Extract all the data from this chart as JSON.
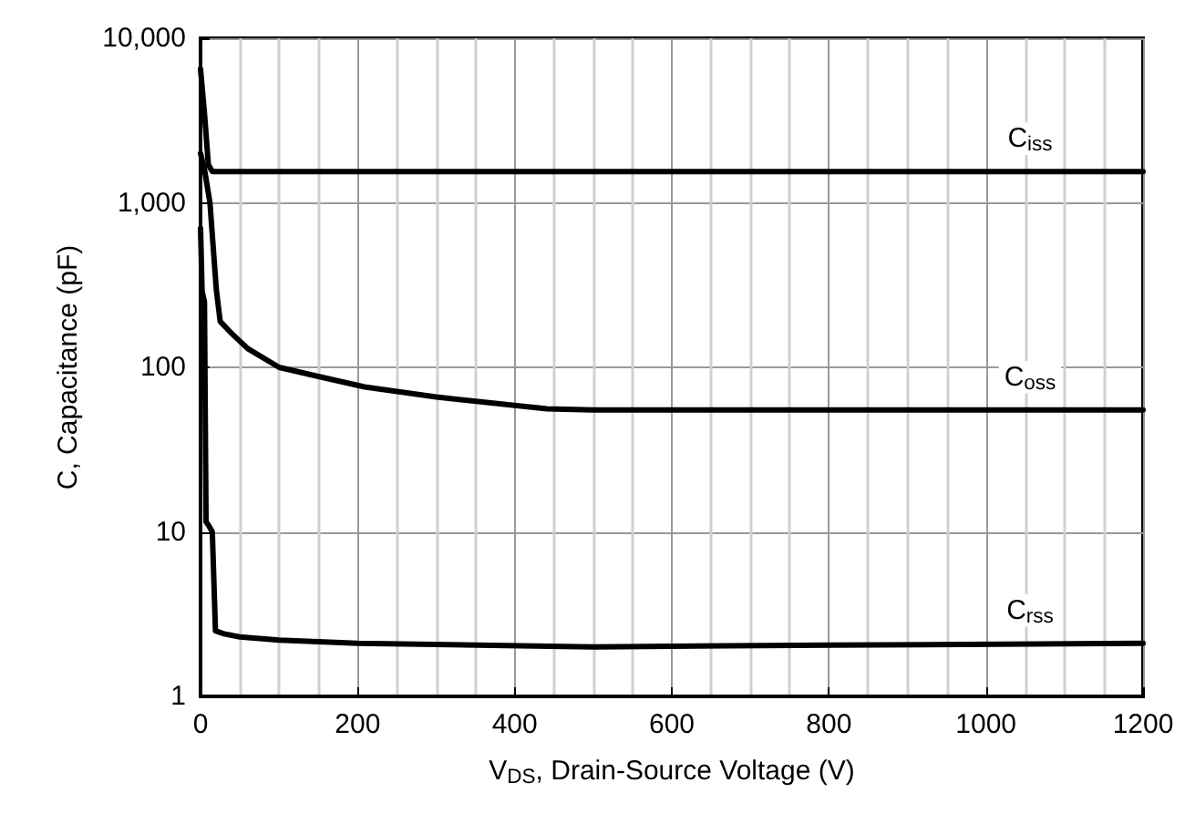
{
  "chart_data": {
    "type": "line",
    "xlabel": "V$_{DS}$, Drain-Source Voltage (V)",
    "ylabel": "C, Capacitance (pF)",
    "xlim": [
      0,
      1200
    ],
    "xticks": [
      0,
      200,
      400,
      600,
      800,
      1000,
      1200
    ],
    "ylim": [
      1,
      10000
    ],
    "yticks": [
      {
        "value": 1,
        "label": "1"
      },
      {
        "value": 10,
        "label": "10"
      },
      {
        "value": 100,
        "label": "100"
      },
      {
        "value": 1000,
        "label": "1,000"
      },
      {
        "value": 10000,
        "label": "10,000"
      }
    ],
    "log": "y",
    "grid": true,
    "legend": false,
    "marker": "none",
    "line_style": "solid",
    "series": [
      {
        "name": "C$_{iss}$",
        "color": "#000000",
        "x": [
          0,
          5,
          10,
          15,
          50,
          200,
          600,
          1200
        ],
        "values": [
          6500,
          3500,
          1700,
          1550,
          1550,
          1550,
          1550,
          1550
        ]
      },
      {
        "name": "C$_{oss}$",
        "color": "#000000",
        "x": [
          0,
          5,
          12,
          20,
          25,
          40,
          60,
          100,
          150,
          209,
          300,
          441,
          500,
          800,
          1200
        ],
        "values": [
          2000,
          1600,
          1000,
          300,
          190,
          160,
          130,
          100,
          88,
          76,
          66,
          56,
          55,
          55,
          55
        ]
      },
      {
        "name": "C$_{rss}$",
        "color": "#000000",
        "x": [
          0,
          2,
          5,
          7,
          10,
          15,
          19,
          30,
          50,
          100,
          200,
          500,
          800,
          1200
        ],
        "values": [
          700,
          290,
          250,
          11.5,
          11,
          10,
          2.5,
          2.4,
          2.3,
          2.2,
          2.1,
          2.0,
          2.05,
          2.1
        ]
      }
    ]
  }
}
